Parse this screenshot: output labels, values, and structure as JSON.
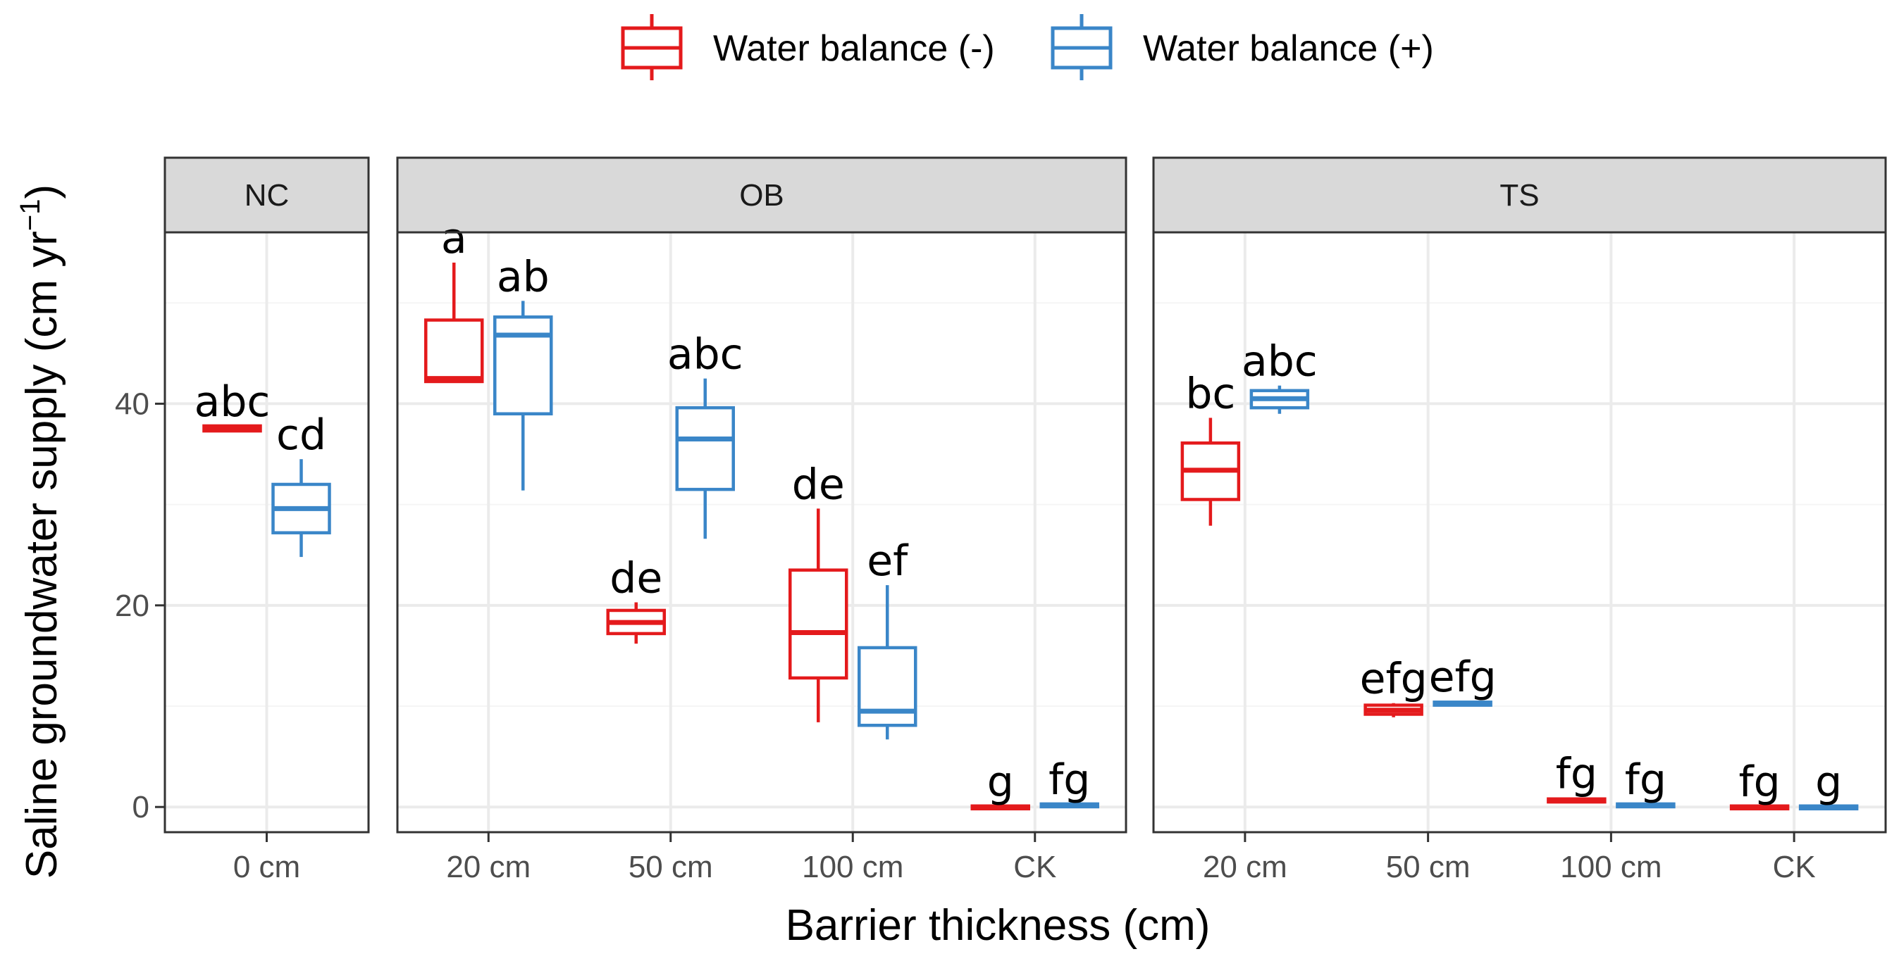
{
  "colors": {
    "negative": "#e41a1c",
    "positive": "#3a86c8",
    "strip_fill": "#d9d9d9",
    "grid_major": "#ebebeb",
    "grid_minor": "#f5f5f5",
    "panel_border": "#333333"
  },
  "chart_data": {
    "type": "box",
    "title": "",
    "xlabel": "Barrier thickness (cm)",
    "ylabel": "Saline groundwater supply (cm yr",
    "ylabel_sup": "−1",
    "ylabel_close": ")",
    "ylim": [
      -2.5,
      57
    ],
    "yticks": [
      0,
      20,
      40
    ],
    "yticks_minor": [
      10,
      30,
      50
    ],
    "legend": {
      "position": "top",
      "entries": [
        {
          "key": "neg",
          "label": "Water balance (-)",
          "color": "#e41a1c"
        },
        {
          "key": "pos",
          "label": "Water balance (+)",
          "color": "#3a86c8"
        }
      ]
    },
    "facets": [
      {
        "name": "NC",
        "categories": [
          "0 cm"
        ],
        "boxes": [
          {
            "category": "0 cm",
            "group": "neg",
            "min": 37.3,
            "q1": 37.3,
            "median": 37.5,
            "q3": 37.8,
            "max": 37.8,
            "letter": "abc"
          },
          {
            "category": "0 cm",
            "group": "pos",
            "min": 24.8,
            "q1": 27.2,
            "median": 29.6,
            "q3": 32.0,
            "max": 34.5,
            "letter": "cd"
          }
        ]
      },
      {
        "name": "OB",
        "categories": [
          "20 cm",
          "50 cm",
          "100 cm",
          "CK"
        ],
        "boxes": [
          {
            "category": "20 cm",
            "group": "neg",
            "min": 42.2,
            "q1": 42.2,
            "median": 42.5,
            "q3": 48.3,
            "max": 54.0,
            "letter": "a"
          },
          {
            "category": "20 cm",
            "group": "pos",
            "min": 31.4,
            "q1": 39.0,
            "median": 46.8,
            "q3": 48.6,
            "max": 50.2,
            "letter": "ab"
          },
          {
            "category": "50 cm",
            "group": "neg",
            "min": 16.2,
            "q1": 17.2,
            "median": 18.3,
            "q3": 19.5,
            "max": 20.3,
            "letter": "de"
          },
          {
            "category": "50 cm",
            "group": "pos",
            "min": 26.6,
            "q1": 31.5,
            "median": 36.5,
            "q3": 39.6,
            "max": 42.5,
            "letter": "abc"
          },
          {
            "category": "100 cm",
            "group": "neg",
            "min": 8.4,
            "q1": 12.8,
            "median": 17.3,
            "q3": 23.5,
            "max": 29.6,
            "letter": "de"
          },
          {
            "category": "100 cm",
            "group": "pos",
            "min": 6.7,
            "q1": 8.1,
            "median": 9.5,
            "q3": 15.8,
            "max": 22.0,
            "letter": "ef"
          },
          {
            "category": "CK",
            "group": "neg",
            "min": 0.0,
            "q1": 0.0,
            "median": 0.0,
            "q3": 0.1,
            "max": 0.1,
            "letter": "g"
          },
          {
            "category": "CK",
            "group": "pos",
            "min": 0.1,
            "q1": 0.1,
            "median": 0.2,
            "q3": 0.3,
            "max": 0.3,
            "letter": "fg"
          }
        ]
      },
      {
        "name": "TS",
        "categories": [
          "20 cm",
          "50 cm",
          "100 cm",
          "CK"
        ],
        "boxes": [
          {
            "category": "20 cm",
            "group": "neg",
            "min": 27.9,
            "q1": 30.5,
            "median": 33.4,
            "q3": 36.1,
            "max": 38.6,
            "letter": "bc"
          },
          {
            "category": "20 cm",
            "group": "pos",
            "min": 39.0,
            "q1": 39.6,
            "median": 40.5,
            "q3": 41.3,
            "max": 41.8,
            "letter": "abc"
          },
          {
            "category": "50 cm",
            "group": "neg",
            "min": 8.9,
            "q1": 9.2,
            "median": 9.6,
            "q3": 10.1,
            "max": 10.3,
            "letter": "efg"
          },
          {
            "category": "50 cm",
            "group": "pos",
            "min": 10.0,
            "q1": 10.1,
            "median": 10.2,
            "q3": 10.4,
            "max": 10.5,
            "letter": "efg"
          },
          {
            "category": "100 cm",
            "group": "neg",
            "min": 0.4,
            "q1": 0.5,
            "median": 0.6,
            "q3": 0.8,
            "max": 0.9,
            "letter": "fg"
          },
          {
            "category": "100 cm",
            "group": "pos",
            "min": 0.1,
            "q1": 0.1,
            "median": 0.2,
            "q3": 0.3,
            "max": 0.3,
            "letter": "fg"
          },
          {
            "category": "CK",
            "group": "neg",
            "min": 0.0,
            "q1": 0.0,
            "median": 0.0,
            "q3": 0.1,
            "max": 0.1,
            "letter": "fg"
          },
          {
            "category": "CK",
            "group": "pos",
            "min": 0.0,
            "q1": 0.0,
            "median": 0.0,
            "q3": 0.1,
            "max": 0.1,
            "letter": "g"
          }
        ]
      }
    ]
  }
}
